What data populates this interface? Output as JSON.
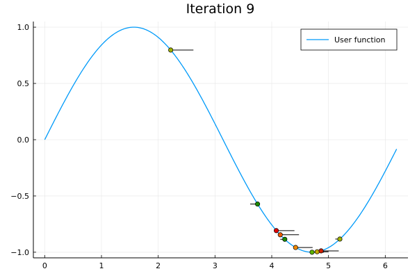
{
  "chart_data": {
    "type": "line",
    "title": "Iteration 9",
    "xlabel": "",
    "ylabel": "",
    "xlim": [
      -0.2,
      6.4
    ],
    "ylim": [
      -1.05,
      1.05
    ],
    "xticks": [
      0,
      1,
      2,
      3,
      4,
      5,
      6
    ],
    "xtick_labels": [
      "0",
      "1",
      "2",
      "3",
      "4",
      "5",
      "6"
    ],
    "yticks": [
      -1.0,
      -0.5,
      0.0,
      0.5,
      1.0
    ],
    "ytick_labels": [
      "−1.0",
      "−0.5",
      "0.0",
      "0.5",
      "1.0"
    ],
    "grid": true,
    "legend_position": "top-right",
    "series": [
      {
        "name": "User function",
        "function": "sin(x)",
        "x_range": [
          0,
          6.2
        ],
        "color": "#009af9"
      }
    ],
    "points": [
      {
        "x": 2.22,
        "y": 0.797,
        "color": "#9fb200",
        "whisker_to_x": 2.62
      },
      {
        "x": 3.75,
        "y": -0.572,
        "color": "#1a8a00",
        "whisker_to_x": 3.62
      },
      {
        "x": 4.08,
        "y": -0.808,
        "color": "#e20000",
        "whisker_to_x": 4.4
      },
      {
        "x": 4.15,
        "y": -0.845,
        "color": "#ee5a00",
        "whisker_to_x": 4.48
      },
      {
        "x": 4.23,
        "y": -0.885,
        "color": "#1a8a00",
        "whisker_to_x": 4.15
      },
      {
        "x": 4.42,
        "y": -0.958,
        "color": "#ee8800",
        "whisker_to_x": 4.72
      },
      {
        "x": 4.71,
        "y": -1.0,
        "color": "#5cb300",
        "whisker_to_x": 4.92
      },
      {
        "x": 4.8,
        "y": -0.996,
        "color": "#c4a800",
        "whisker_to_x": 5.0
      },
      {
        "x": 4.87,
        "y": -0.988,
        "color": "#d02000",
        "whisker_to_x": 5.18
      },
      {
        "x": 5.2,
        "y": -0.883,
        "color": "#9fb200",
        "whisker_to_x": 5.12
      }
    ]
  },
  "colors": {
    "axis": "#000000",
    "grid": "#e6e6e6",
    "legend_border": "#000000",
    "marker_edge": "#000000",
    "whisker": "#000000"
  }
}
